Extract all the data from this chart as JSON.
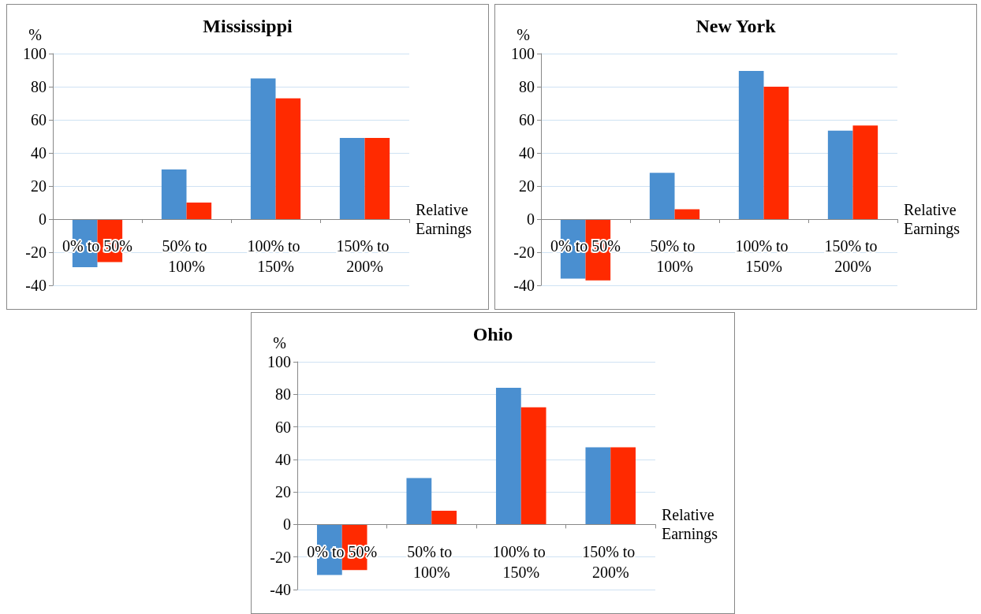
{
  "chart_data": [
    {
      "type": "bar",
      "title": "Mississippi",
      "ylabel": "%",
      "xlabel": "Relative Earnings",
      "categories": [
        "0% to 50%",
        "50% to 100%",
        "100% to 150%",
        "150% to 200%"
      ],
      "series": [
        {
          "color": "#4a8fd0",
          "values": [
            -29,
            30,
            85,
            49
          ]
        },
        {
          "color": "#ff2a00",
          "values": [
            -26,
            10,
            73,
            49
          ]
        }
      ],
      "ylim": [
        -40,
        100
      ],
      "yticks": [
        -40,
        -20,
        0,
        20,
        40,
        60,
        80,
        100
      ],
      "grid": "y"
    },
    {
      "type": "bar",
      "title": "New York",
      "ylabel": "%",
      "xlabel": "Relative Earnings",
      "categories": [
        "0% to 50%",
        "50% to 100%",
        "100% to 150%",
        "150% to 200%"
      ],
      "series": [
        {
          "color": "#4a8fd0",
          "values": [
            -36,
            28,
            89.5,
            53.5
          ]
        },
        {
          "color": "#ff2a00",
          "values": [
            -37,
            6,
            80,
            56.5
          ]
        }
      ],
      "ylim": [
        -40,
        100
      ],
      "yticks": [
        -40,
        -20,
        0,
        20,
        40,
        60,
        80,
        100
      ],
      "grid": "y"
    },
    {
      "type": "bar",
      "title": "Ohio",
      "ylabel": "%",
      "xlabel": "Relative Earnings",
      "categories": [
        "0% to 50%",
        "50% to 100%",
        "100% to 150%",
        "150% to 200%"
      ],
      "series": [
        {
          "color": "#4a8fd0",
          "values": [
            -31,
            28.5,
            84,
            47.5
          ]
        },
        {
          "color": "#ff2a00",
          "values": [
            -28,
            8.5,
            72,
            47.5
          ]
        }
      ],
      "ylim": [
        -40,
        100
      ],
      "yticks": [
        -40,
        -20,
        0,
        20,
        40,
        60,
        80,
        100
      ],
      "grid": "y"
    }
  ]
}
